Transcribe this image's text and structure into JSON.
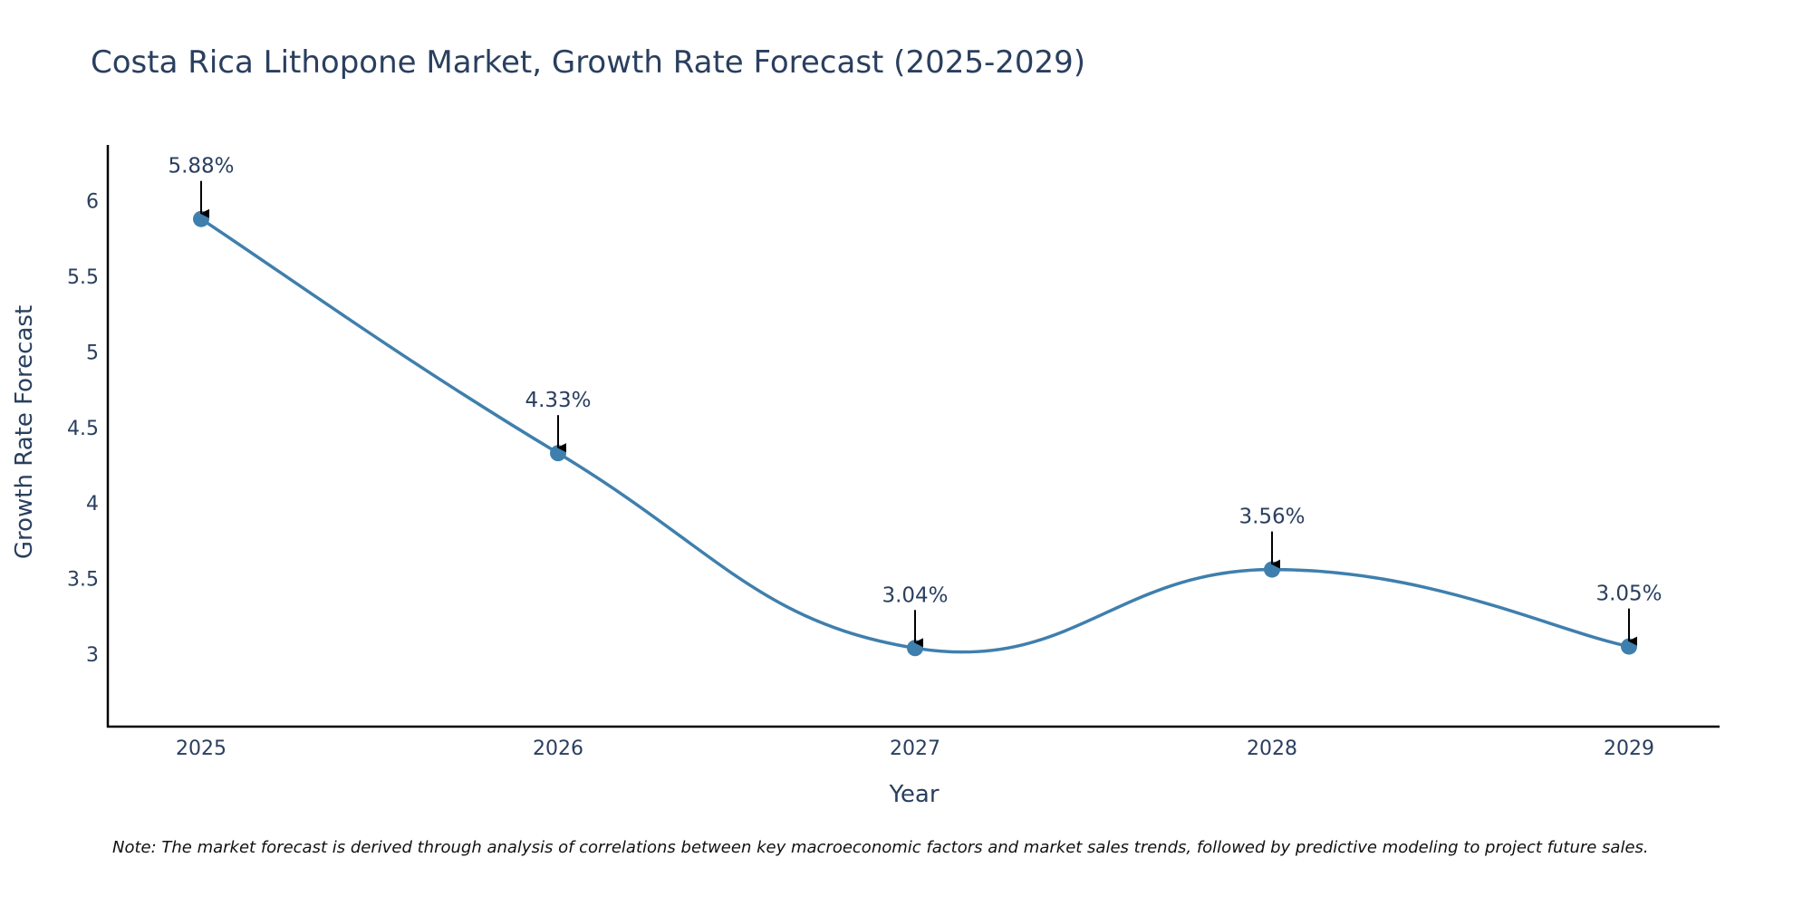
{
  "chart_data": {
    "type": "line",
    "title": "Costa Rica Lithopone Market, Growth Rate Forecast (2025-2029)",
    "xlabel": "Year",
    "ylabel": "Growth Rate Forecast",
    "categories": [
      "2025",
      "2026",
      "2027",
      "2028",
      "2029"
    ],
    "series": [
      {
        "name": "Growth Rate Forecast",
        "values": [
          5.88,
          4.33,
          3.04,
          3.56,
          3.05
        ],
        "labels": [
          "5.88%",
          "4.33%",
          "3.04%",
          "3.56%",
          "3.05%"
        ]
      }
    ],
    "yticks": [
      3,
      3.5,
      4,
      4.5,
      5,
      5.5,
      6
    ],
    "ytick_labels": [
      "3",
      "3.5",
      "4",
      "4.5",
      "5",
      "5.5",
      "6"
    ],
    "ylim": [
      2.52,
      6.37
    ],
    "grid": false,
    "line_color": "#3f7fad",
    "marker_color": "#3f7fad",
    "arrow_color": "#000000",
    "note": "Note: The market forecast is derived through analysis of correlations between key macroeconomic factors and market sales trends, followed by predictive modeling to project future sales."
  }
}
